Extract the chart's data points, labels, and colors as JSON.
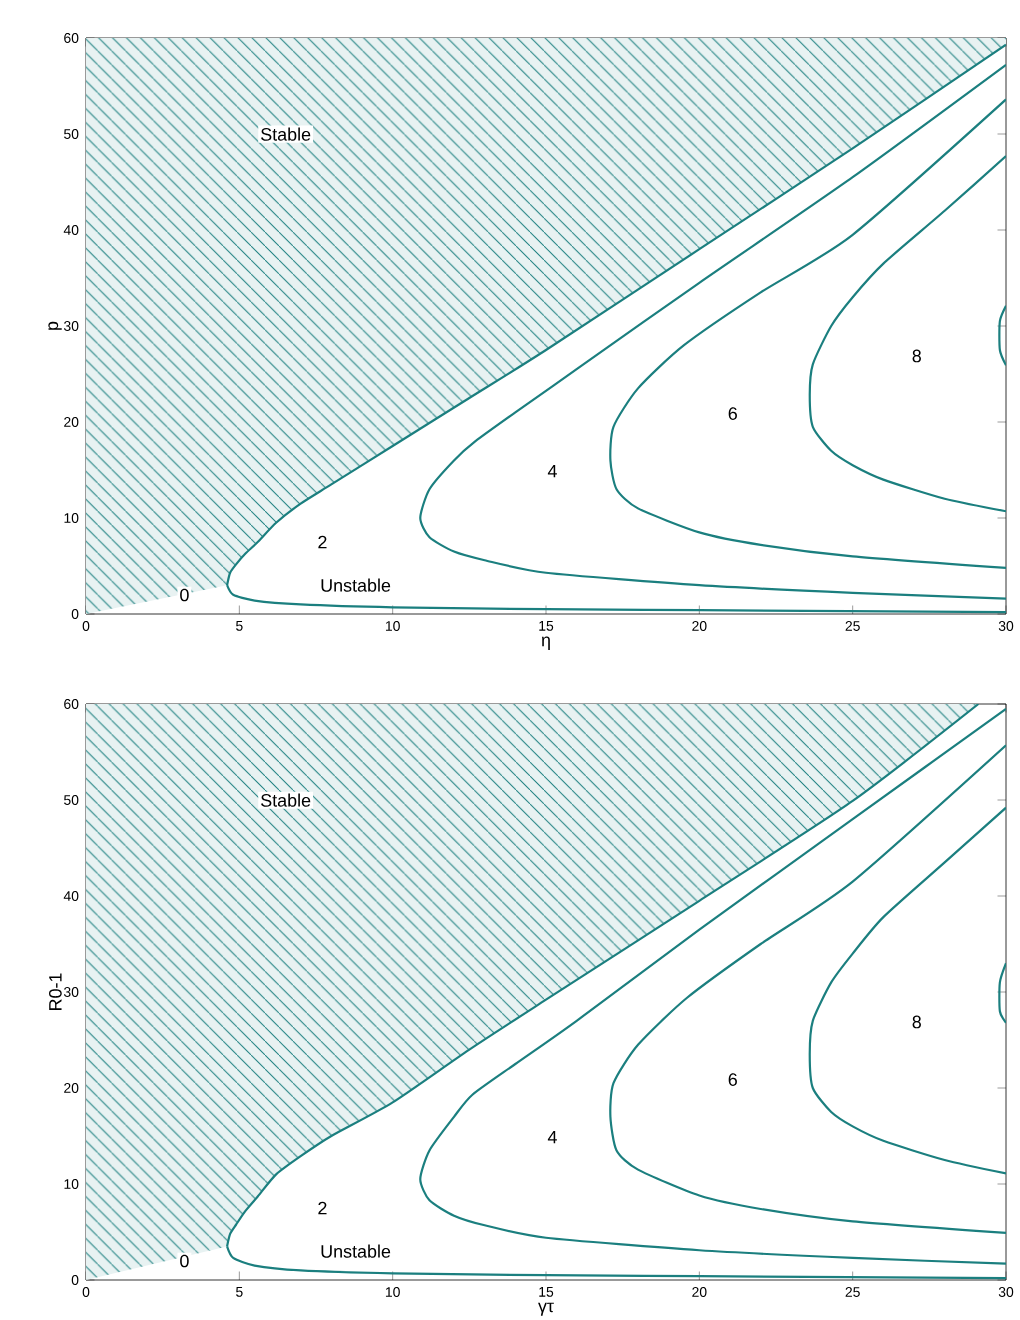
{
  "chart_data": [
    {
      "type": "line",
      "xlabel": "η",
      "ylabel": "p",
      "xlim": [
        0,
        30
      ],
      "ylim": [
        0,
        60
      ],
      "xticks": [
        0,
        5,
        10,
        15,
        20,
        25,
        30
      ],
      "yticks": [
        0,
        10,
        20,
        30,
        40,
        50,
        60
      ],
      "grid": false,
      "series": [
        {
          "type": "line",
          "color": "#1b7f7f",
          "x": [
            0,
            4.6,
            4.7,
            4.9,
            5.2,
            5.6,
            6.2,
            7,
            8,
            10,
            12.5,
            15,
            20,
            25,
            30
          ],
          "values": [
            null,
            3,
            4.3,
            5.2,
            6.3,
            7.5,
            9.5,
            11.5,
            13.5,
            17.5,
            22.5,
            27.5,
            38,
            48.5,
            59.3
          ],
          "lower": [
            0,
            3,
            4.3,
            5.2,
            6.3,
            7.5,
            9.5,
            11.5,
            13.5,
            17.5,
            22.5,
            27.5,
            38,
            48.5,
            59.3
          ],
          "upper": [
            60,
            60,
            60,
            60,
            60,
            60,
            60,
            60,
            60,
            60,
            60,
            60,
            60,
            60,
            60
          ]
        },
        {
          "type": "line",
          "color": "#1b7f7f",
          "x": [
            30,
            20,
            15,
            10,
            7,
            5.5,
            4.8,
            4.6
          ],
          "values": [
            0.2,
            0.4,
            0.5,
            0.7,
            1.0,
            1.4,
            2,
            3
          ]
        },
        {
          "type": "line",
          "color": "#1b7f7f",
          "x": [
            30,
            25,
            20,
            15,
            13,
            12,
            11.2,
            10.9,
            11.2,
            12,
            12.7,
            14,
            16,
            20,
            25,
            30
          ],
          "values": [
            1.6,
            2.2,
            3,
            4.3,
            5.6,
            6.5,
            8,
            10,
            13,
            16,
            18,
            21,
            25.5,
            34.5,
            45.5,
            57.2
          ]
        },
        {
          "type": "line",
          "color": "#1b7f7f",
          "x": [
            30,
            25,
            22,
            20,
            18,
            17.3,
            17.1,
            17.2,
            18,
            19.5,
            22,
            25,
            30
          ],
          "values": [
            4.8,
            6,
            7.2,
            8.5,
            11,
            13,
            16,
            19.5,
            23.5,
            28,
            33.5,
            39.5,
            53.6
          ]
        },
        {
          "type": "line",
          "color": "#1b7f7f",
          "x": [
            30,
            28,
            26,
            25,
            24.3,
            23.7,
            23.6,
            23.7,
            24.3,
            25,
            26,
            28,
            30
          ],
          "values": [
            10.7,
            12,
            14,
            15.5,
            17,
            19.5,
            22.8,
            26,
            30,
            33,
            36.5,
            42,
            47.7
          ]
        },
        {
          "type": "line",
          "color": "#1b7f7f",
          "x": [
            30,
            29.8,
            29.8,
            30
          ],
          "values": [
            32.1,
            30.5,
            27.5,
            25.9
          ]
        }
      ],
      "annotations": [
        "Stable",
        "Unstable",
        "0",
        "2",
        "4",
        "6",
        "8"
      ]
    },
    {
      "type": "line",
      "xlabel": "γτ",
      "ylabel": "R0-1",
      "xlim": [
        0,
        30
      ],
      "ylim": [
        0,
        60
      ],
      "xticks": [
        0,
        5,
        10,
        15,
        20,
        25,
        30
      ],
      "yticks": [
        0,
        10,
        20,
        30,
        40,
        50,
        60
      ],
      "grid": false,
      "series": [
        {
          "type": "line",
          "color": "#1b7f7f",
          "x": [
            0,
            4.6,
            4.7,
            4.9,
            5.2,
            5.6,
            6.2,
            7,
            8,
            10,
            12.5,
            15,
            20,
            25,
            29.1
          ],
          "values": [
            null,
            3.5,
            4.8,
            5.8,
            7.2,
            8.7,
            11,
            12.9,
            15,
            18.5,
            24,
            29.2,
            39.5,
            49.9,
            60
          ],
          "lower": [
            0,
            3.5,
            4.8,
            5.8,
            7.2,
            8.7,
            11,
            12.9,
            15,
            18.5,
            24,
            29.2,
            39.5,
            49.9,
            60
          ],
          "upper": [
            60,
            60,
            60,
            60,
            60,
            60,
            60,
            60,
            60,
            60,
            60,
            60,
            60,
            60,
            60
          ]
        },
        {
          "type": "line",
          "color": "#1b7f7f",
          "x": [
            30,
            20,
            15,
            10,
            7,
            5.5,
            4.8,
            4.6
          ],
          "values": [
            0.2,
            0.4,
            0.5,
            0.7,
            1.0,
            1.5,
            2.3,
            3.5
          ]
        },
        {
          "type": "line",
          "color": "#1b7f7f",
          "x": [
            30,
            25,
            20,
            15,
            13,
            12,
            11.2,
            10.9,
            11.2,
            12,
            12.6,
            14,
            16,
            20,
            25,
            30
          ],
          "values": [
            1.7,
            2.3,
            3.1,
            4.4,
            5.7,
            6.7,
            8.3,
            10.5,
            13.5,
            17,
            19.3,
            22.5,
            27,
            36.5,
            48,
            59.5
          ]
        },
        {
          "type": "line",
          "color": "#1b7f7f",
          "x": [
            30,
            25,
            22,
            20,
            18,
            17.3,
            17.1,
            17.2,
            18,
            19.6,
            22,
            25,
            30
          ],
          "values": [
            4.9,
            6.1,
            7.4,
            8.8,
            11.5,
            13.5,
            17,
            20.5,
            24.5,
            29.4,
            35,
            41.5,
            55.7
          ]
        },
        {
          "type": "line",
          "color": "#1b7f7f",
          "x": [
            30,
            28,
            26,
            25,
            24.3,
            23.7,
            23.6,
            23.7,
            24.3,
            25,
            26,
            28,
            30
          ],
          "values": [
            11.1,
            12.5,
            14.5,
            16,
            17.5,
            20,
            23.5,
            27,
            31,
            34,
            37.8,
            43.5,
            49.2
          ]
        },
        {
          "type": "line",
          "color": "#1b7f7f",
          "x": [
            30,
            29.8,
            29.8,
            30
          ],
          "values": [
            33,
            31,
            28,
            26.8
          ]
        }
      ],
      "annotations": [
        "Stable",
        "Unstable",
        "0",
        "2",
        "4",
        "6",
        "8"
      ]
    }
  ]
}
